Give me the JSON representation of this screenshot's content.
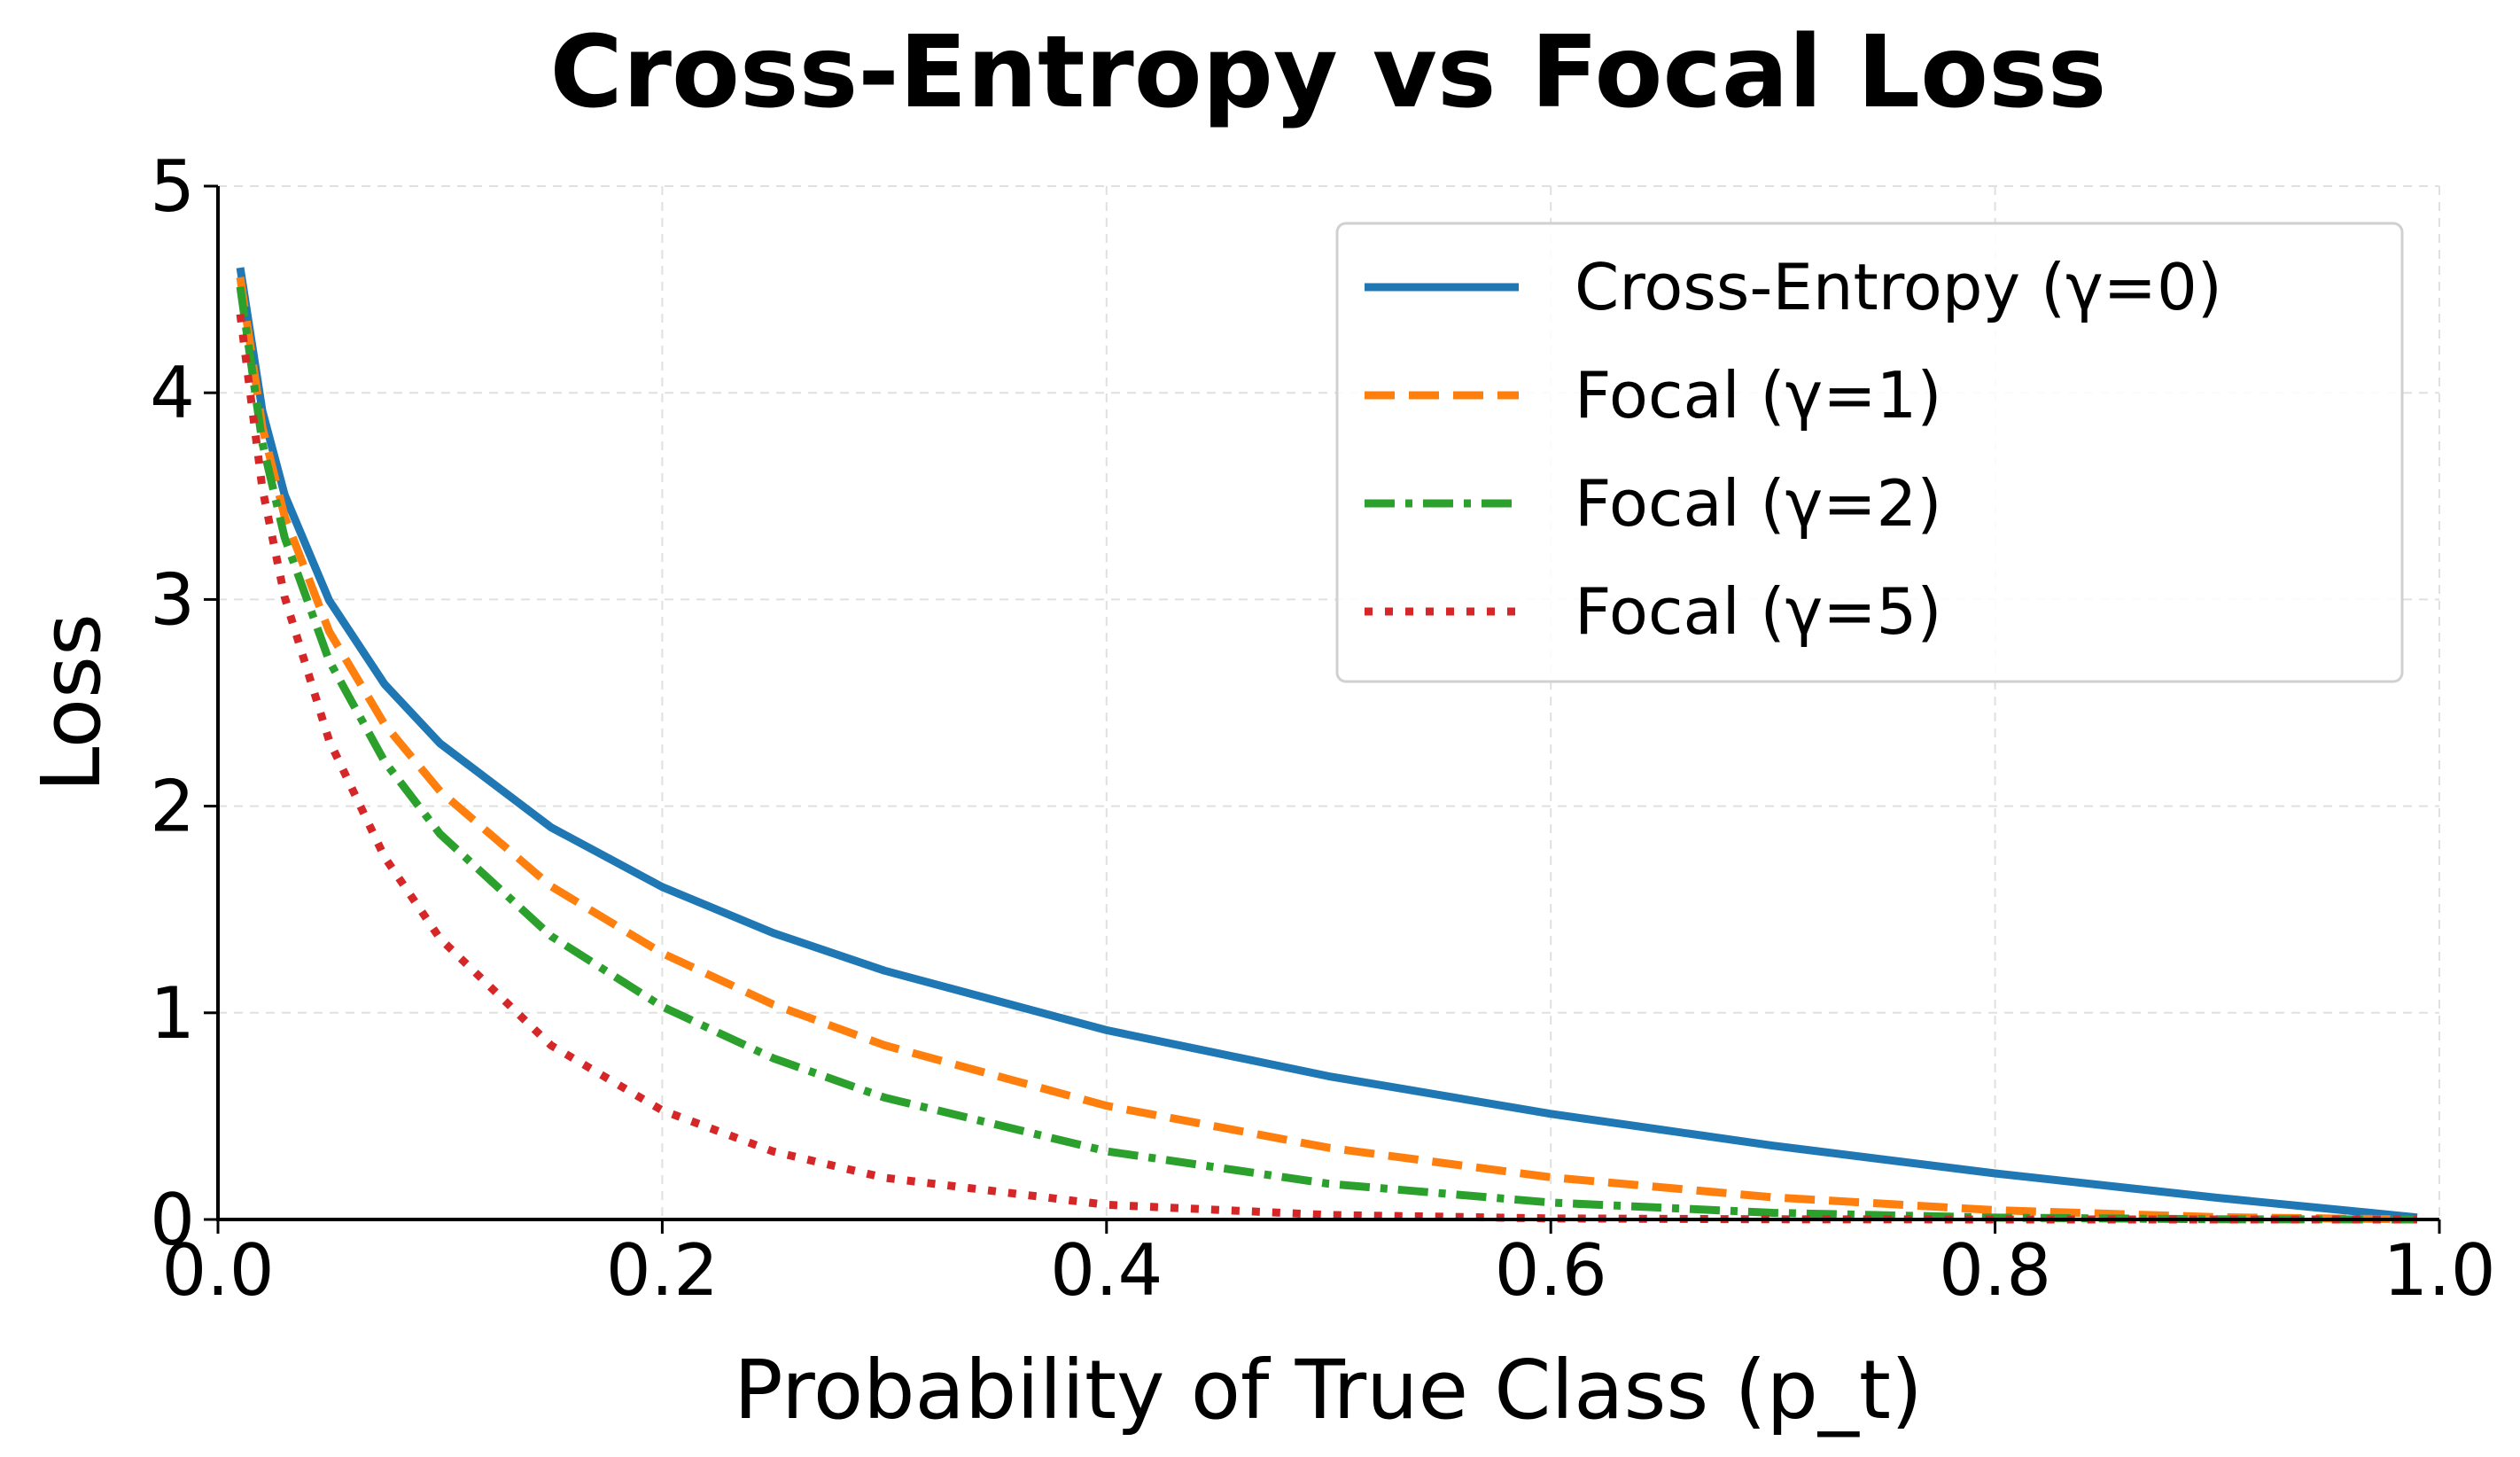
{
  "chart_data": {
    "type": "line",
    "title": "Cross-Entropy vs Focal Loss",
    "xlabel": "Probability of True Class (p_t)",
    "ylabel": "Loss",
    "xlim": [
      0.0,
      1.0
    ],
    "ylim": [
      0,
      5
    ],
    "xticks": [
      "0.0",
      "0.2",
      "0.4",
      "0.6",
      "0.8",
      "1.0"
    ],
    "yticks": [
      "0",
      "1",
      "2",
      "3",
      "4",
      "5"
    ],
    "grid": true,
    "legend_position": "top-right",
    "x": [
      0.01,
      0.02,
      0.03,
      0.05,
      0.075,
      0.1,
      0.15,
      0.2,
      0.25,
      0.3,
      0.4,
      0.5,
      0.6,
      0.7,
      0.8,
      0.9,
      0.99
    ],
    "series": [
      {
        "name": "Cross-Entropy (γ=0)",
        "color": "#1f77b4",
        "style": "solid",
        "values": [
          4.605,
          3.912,
          3.507,
          2.996,
          2.59,
          2.303,
          1.897,
          1.609,
          1.386,
          1.204,
          0.916,
          0.693,
          0.511,
          0.357,
          0.223,
          0.105,
          0.01
        ]
      },
      {
        "name": "Focal (γ=1)",
        "color": "#ff7f0e",
        "style": "dashed",
        "values": [
          4.559,
          3.834,
          3.402,
          2.846,
          2.396,
          2.072,
          1.612,
          1.288,
          1.04,
          0.843,
          0.55,
          0.347,
          0.204,
          0.107,
          0.045,
          0.011,
          0.0
        ]
      },
      {
        "name": "Focal (γ=2)",
        "color": "#2ca02c",
        "style": "dashdot",
        "values": [
          4.513,
          3.757,
          3.3,
          2.704,
          2.216,
          1.865,
          1.371,
          1.03,
          0.78,
          0.59,
          0.33,
          0.173,
          0.082,
          0.032,
          0.009,
          0.001,
          0.0
        ]
      },
      {
        "name": "Focal (γ=5)",
        "color": "#d62728",
        "style": "dotted",
        "values": [
          4.38,
          3.536,
          3.012,
          2.318,
          1.754,
          1.359,
          0.842,
          0.528,
          0.329,
          0.202,
          0.071,
          0.022,
          0.005,
          0.001,
          0.0,
          0.0,
          0.0
        ]
      }
    ]
  }
}
